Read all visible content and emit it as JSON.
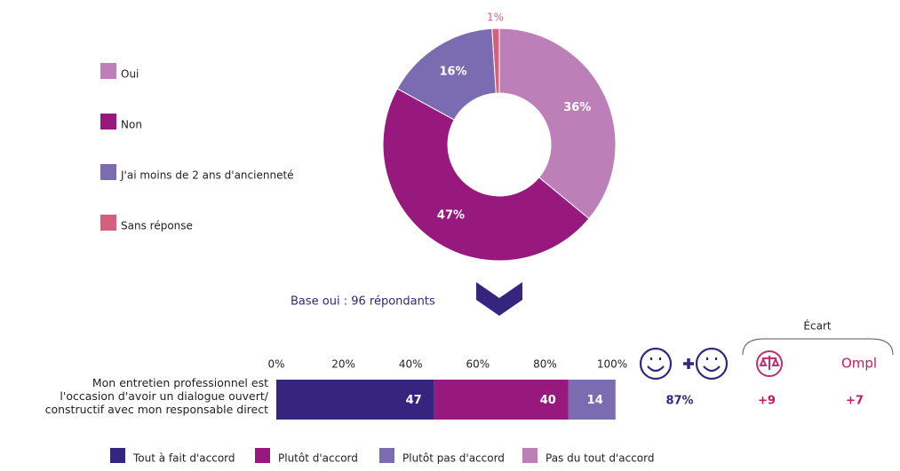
{
  "chart_data": [
    {
      "type": "donut",
      "categories": [
        "Oui",
        "Non",
        "J'ai moins de 2 ans d'ancienneté",
        "Sans réponse"
      ],
      "values": [
        36,
        47,
        16,
        1
      ],
      "value_labels": [
        "36%",
        "47%",
        "16%",
        "1%"
      ],
      "colors": [
        "#bd7fb8",
        "#98197e",
        "#7b6bb0",
        "#d4607f"
      ],
      "legend": "left"
    },
    {
      "type": "stacked_bar",
      "orientation": "horizontal",
      "categories": [
        "Mon entretien professionnel est l'occasion d'avoir un dialogue ouvert/ constructif avec mon responsable direct"
      ],
      "series": [
        {
          "name": "Tout à fait d'accord",
          "color": "#35257f",
          "values": [
            47
          ]
        },
        {
          "name": "Plutôt d'accord",
          "color": "#98197e",
          "values": [
            40
          ]
        },
        {
          "name": "Plutôt pas d'accord",
          "color": "#7b6bb0",
          "values": [
            14
          ]
        },
        {
          "name": "Pas du tout d'accord",
          "color": "#bd7fb8",
          "values": [
            0
          ]
        }
      ],
      "xlim": [
        0,
        100
      ],
      "xticks": [
        {
          "value": 0,
          "label": "0%"
        },
        {
          "value": 20,
          "label": "20%"
        },
        {
          "value": 40,
          "label": "40%"
        },
        {
          "value": 60,
          "label": "60%"
        },
        {
          "value": 80,
          "label": "80%"
        },
        {
          "value": 100,
          "label": "100%"
        }
      ],
      "legend": "bottom"
    }
  ],
  "panel": {
    "base_label": "Base oui : 96 répondants",
    "summary": "87%",
    "ecart_title": "Écart",
    "logo": "Ompl",
    "ecart_values": [
      "+9",
      "+7"
    ]
  }
}
